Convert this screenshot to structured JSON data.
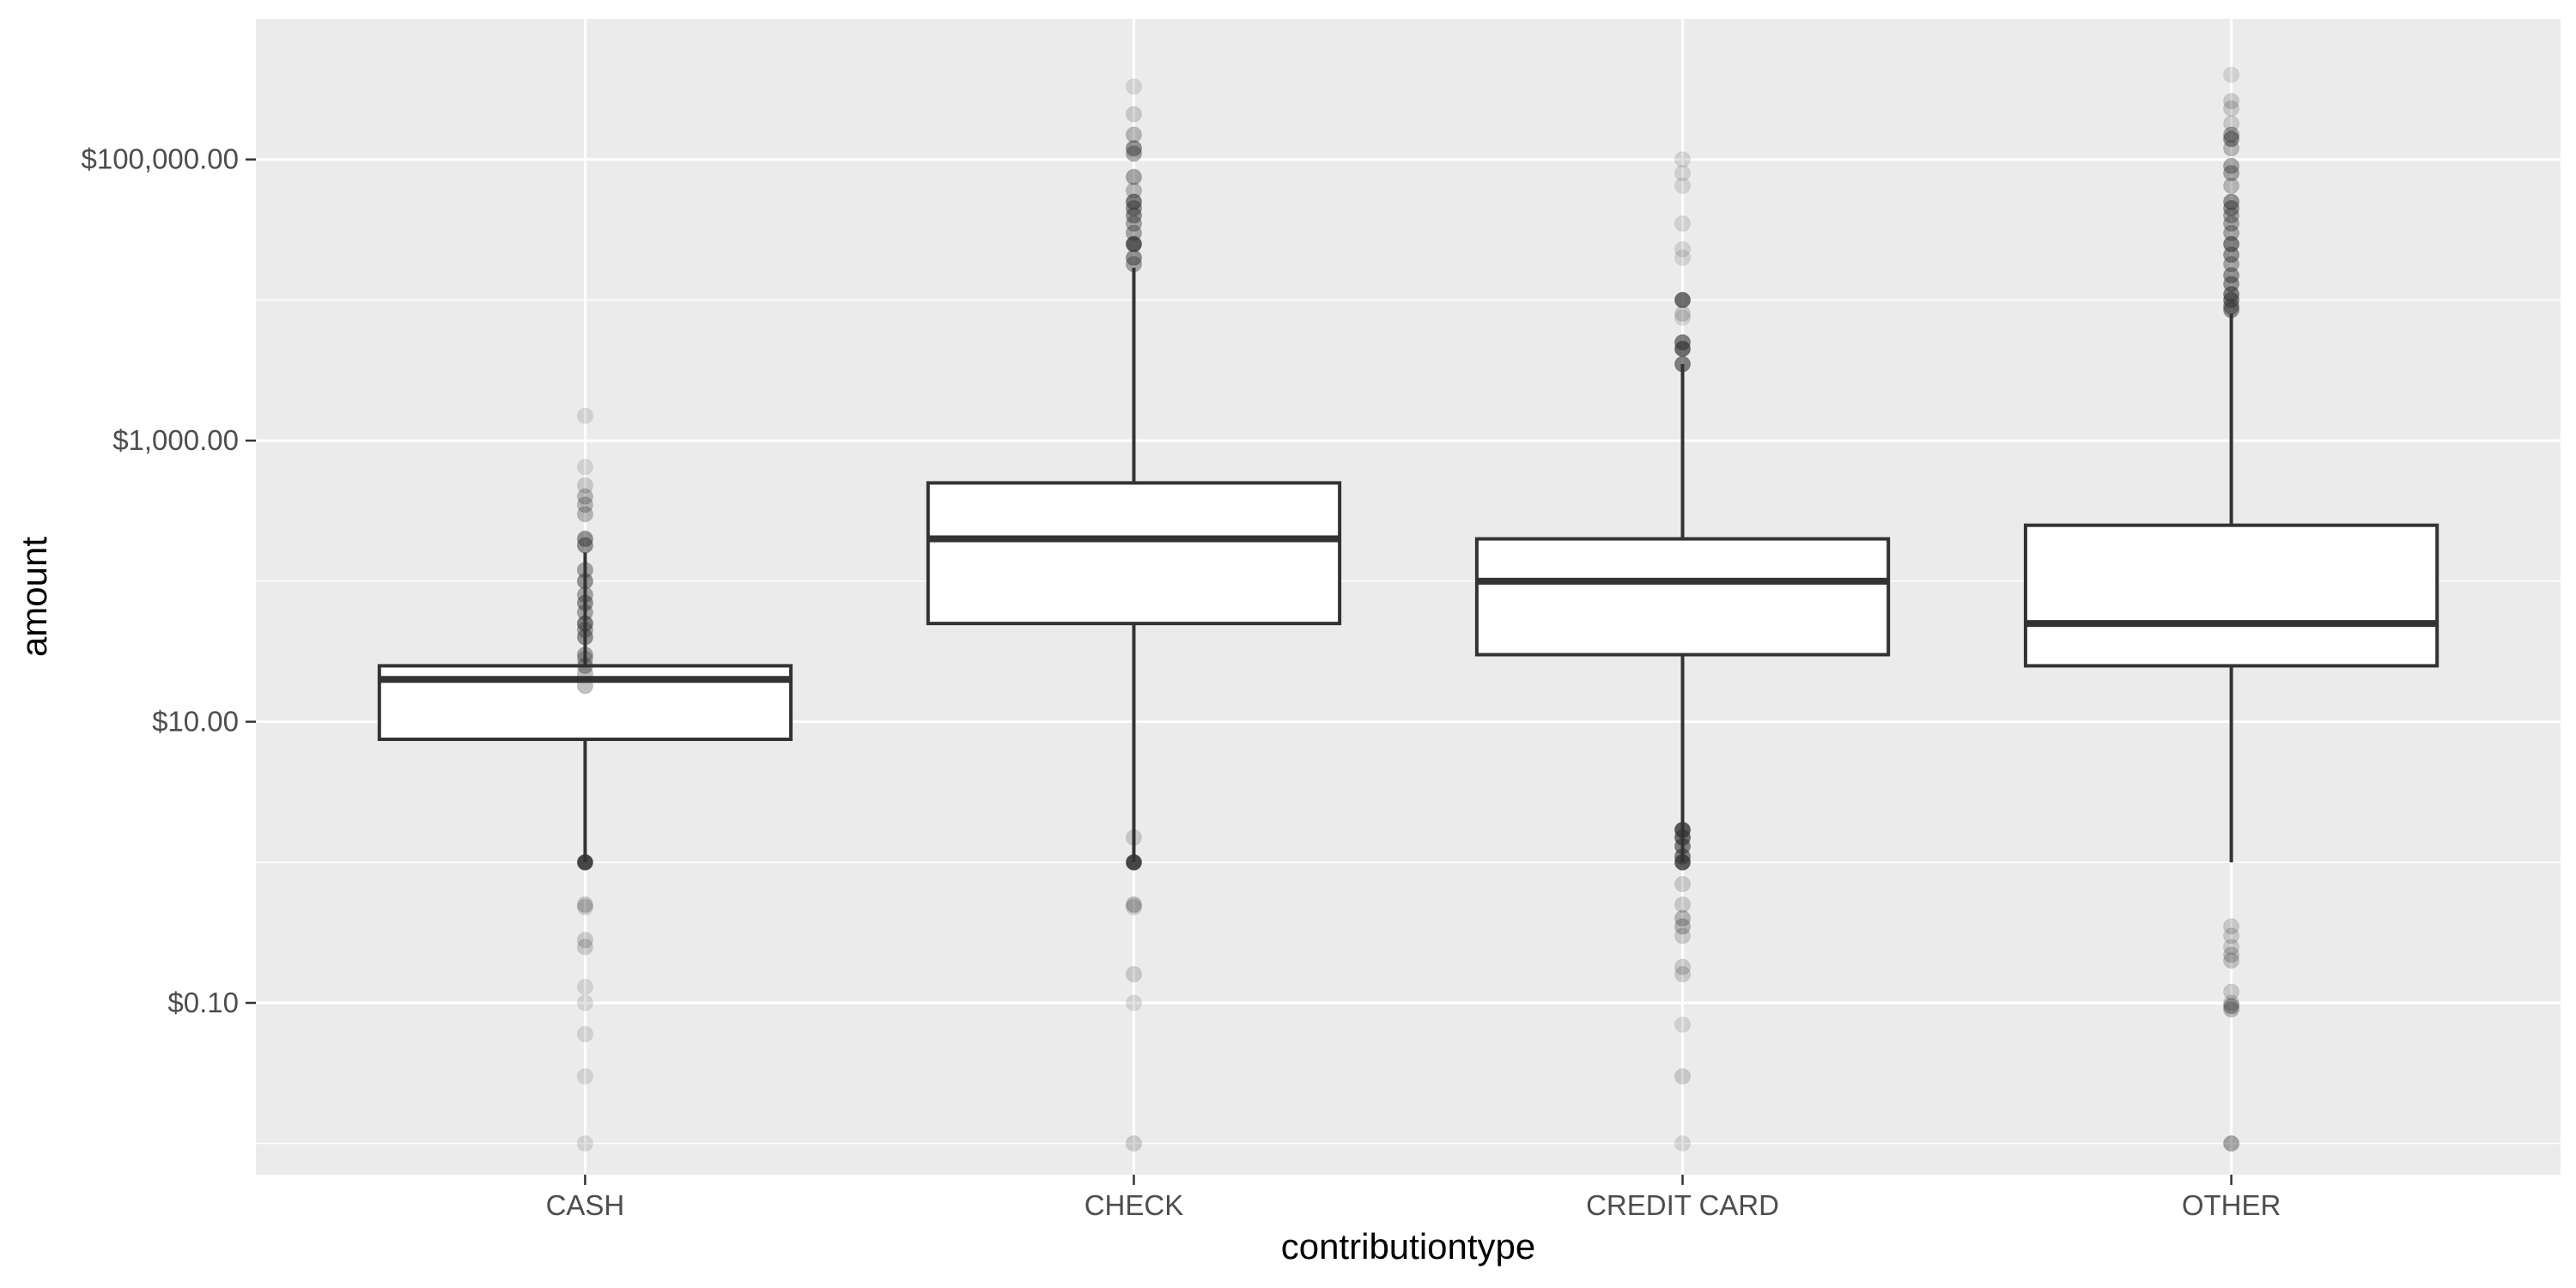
{
  "chart_data": {
    "type": "boxplot",
    "xlabel": "contributiontype",
    "ylabel": "amount",
    "y_scale": "log10",
    "ylim": [
      0.006,
      1000000
    ],
    "grid": true,
    "y_ticks": [
      {
        "value": 0.1,
        "label": "$0.10"
      },
      {
        "value": 10,
        "label": "$10.00"
      },
      {
        "value": 1000,
        "label": "$1,000.00"
      },
      {
        "value": 100000,
        "label": "$100,000.00"
      }
    ],
    "y_minor_ticks": [
      0.01,
      1,
      100,
      10000
    ],
    "categories": [
      "CASH",
      "CHECK",
      "CREDIT CARD",
      "OTHER"
    ],
    "boxes": [
      {
        "category": "CASH",
        "whisker_low": 1.0,
        "q1": 7.5,
        "median": 20,
        "q3": 25,
        "whisker_high": 160,
        "outliers": [
          {
            "value": 1500,
            "opacity": 0.15
          },
          {
            "value": 650,
            "opacity": 0.15
          },
          {
            "value": 480,
            "opacity": 0.2
          },
          {
            "value": 400,
            "opacity": 0.3
          },
          {
            "value": 350,
            "opacity": 0.3
          },
          {
            "value": 300,
            "opacity": 0.3
          },
          {
            "value": 200,
            "opacity": 0.5
          },
          {
            "value": 180,
            "opacity": 0.5
          },
          {
            "value": 120,
            "opacity": 0.4
          },
          {
            "value": 100,
            "opacity": 0.5
          },
          {
            "value": 80,
            "opacity": 0.4
          },
          {
            "value": 70,
            "opacity": 0.5
          },
          {
            "value": 60,
            "opacity": 0.4
          },
          {
            "value": 50,
            "opacity": 0.6
          },
          {
            "value": 45,
            "opacity": 0.4
          },
          {
            "value": 40,
            "opacity": 0.5
          },
          {
            "value": 30,
            "opacity": 0.4
          },
          {
            "value": 28,
            "opacity": 0.3
          },
          {
            "value": 25,
            "opacity": 0.4
          },
          {
            "value": 22,
            "opacity": 0.3
          },
          {
            "value": 18,
            "opacity": 0.3
          },
          {
            "value": 1.0,
            "opacity": 0.9
          },
          {
            "value": 0.5,
            "opacity": 0.25
          },
          {
            "value": 0.48,
            "opacity": 0.2
          },
          {
            "value": 0.28,
            "opacity": 0.2
          },
          {
            "value": 0.25,
            "opacity": 0.2
          },
          {
            "value": 0.13,
            "opacity": 0.15
          },
          {
            "value": 0.1,
            "opacity": 0.15
          },
          {
            "value": 0.06,
            "opacity": 0.15
          },
          {
            "value": 0.03,
            "opacity": 0.15
          },
          {
            "value": 0.01,
            "opacity": 0.15
          }
        ]
      },
      {
        "category": "CHECK",
        "whisker_low": 1.0,
        "q1": 50,
        "median": 200,
        "q3": 500,
        "whisker_high": 17000,
        "outliers": [
          {
            "value": 330000,
            "opacity": 0.15
          },
          {
            "value": 210000,
            "opacity": 0.2
          },
          {
            "value": 150000,
            "opacity": 0.3
          },
          {
            "value": 120000,
            "opacity": 0.5
          },
          {
            "value": 110000,
            "opacity": 0.4
          },
          {
            "value": 75000,
            "opacity": 0.4
          },
          {
            "value": 60000,
            "opacity": 0.3
          },
          {
            "value": 50000,
            "opacity": 0.6
          },
          {
            "value": 45000,
            "opacity": 0.5
          },
          {
            "value": 40000,
            "opacity": 0.5
          },
          {
            "value": 35000,
            "opacity": 0.4
          },
          {
            "value": 30000,
            "opacity": 0.4
          },
          {
            "value": 25000,
            "opacity": 0.8
          },
          {
            "value": 20000,
            "opacity": 0.5
          },
          {
            "value": 18000,
            "opacity": 0.4
          },
          {
            "value": 1.5,
            "opacity": 0.2
          },
          {
            "value": 1.0,
            "opacity": 0.9
          },
          {
            "value": 0.5,
            "opacity": 0.3
          },
          {
            "value": 0.48,
            "opacity": 0.2
          },
          {
            "value": 0.16,
            "opacity": 0.2
          },
          {
            "value": 0.1,
            "opacity": 0.15
          },
          {
            "value": 0.01,
            "opacity": 0.2
          }
        ]
      },
      {
        "category": "CREDIT CARD",
        "whisker_low": 1.0,
        "q1": 30,
        "median": 100,
        "q3": 200,
        "whisker_high": 3500,
        "outliers": [
          {
            "value": 100000,
            "opacity": 0.15
          },
          {
            "value": 80000,
            "opacity": 0.15
          },
          {
            "value": 65000,
            "opacity": 0.15
          },
          {
            "value": 35000,
            "opacity": 0.15
          },
          {
            "value": 23000,
            "opacity": 0.15
          },
          {
            "value": 20000,
            "opacity": 0.15
          },
          {
            "value": 10000,
            "opacity": 0.7
          },
          {
            "value": 8000,
            "opacity": 0.2
          },
          {
            "value": 7500,
            "opacity": 0.15
          },
          {
            "value": 5000,
            "opacity": 0.6
          },
          {
            "value": 4500,
            "opacity": 0.7
          },
          {
            "value": 3500,
            "opacity": 0.6
          },
          {
            "value": 1.7,
            "opacity": 0.8
          },
          {
            "value": 1.5,
            "opacity": 0.7
          },
          {
            "value": 1.3,
            "opacity": 0.6
          },
          {
            "value": 1.1,
            "opacity": 0.6
          },
          {
            "value": 1.0,
            "opacity": 0.8
          },
          {
            "value": 0.7,
            "opacity": 0.2
          },
          {
            "value": 0.5,
            "opacity": 0.2
          },
          {
            "value": 0.4,
            "opacity": 0.3
          },
          {
            "value": 0.35,
            "opacity": 0.3
          },
          {
            "value": 0.3,
            "opacity": 0.2
          },
          {
            "value": 0.18,
            "opacity": 0.2
          },
          {
            "value": 0.16,
            "opacity": 0.2
          },
          {
            "value": 0.07,
            "opacity": 0.15
          },
          {
            "value": 0.03,
            "opacity": 0.2
          },
          {
            "value": 0.01,
            "opacity": 0.15
          }
        ]
      },
      {
        "category": "OTHER",
        "whisker_low": 1.0,
        "q1": 25,
        "median": 50,
        "q3": 250,
        "whisker_high": 8000,
        "outliers": [
          {
            "value": 400000,
            "opacity": 0.15
          },
          {
            "value": 260000,
            "opacity": 0.2
          },
          {
            "value": 230000,
            "opacity": 0.2
          },
          {
            "value": 180000,
            "opacity": 0.2
          },
          {
            "value": 150000,
            "opacity": 0.4
          },
          {
            "value": 140000,
            "opacity": 0.5
          },
          {
            "value": 120000,
            "opacity": 0.3
          },
          {
            "value": 90000,
            "opacity": 0.4
          },
          {
            "value": 80000,
            "opacity": 0.4
          },
          {
            "value": 65000,
            "opacity": 0.3
          },
          {
            "value": 50000,
            "opacity": 0.5
          },
          {
            "value": 45000,
            "opacity": 0.5
          },
          {
            "value": 40000,
            "opacity": 0.4
          },
          {
            "value": 35000,
            "opacity": 0.4
          },
          {
            "value": 30000,
            "opacity": 0.4
          },
          {
            "value": 25000,
            "opacity": 0.6
          },
          {
            "value": 21000,
            "opacity": 0.5
          },
          {
            "value": 18000,
            "opacity": 0.4
          },
          {
            "value": 15000,
            "opacity": 0.5
          },
          {
            "value": 13000,
            "opacity": 0.5
          },
          {
            "value": 11000,
            "opacity": 0.6
          },
          {
            "value": 10000,
            "opacity": 0.6
          },
          {
            "value": 9000,
            "opacity": 0.5
          },
          {
            "value": 8500,
            "opacity": 0.5
          },
          {
            "value": 0.35,
            "opacity": 0.2
          },
          {
            "value": 0.3,
            "opacity": 0.2
          },
          {
            "value": 0.25,
            "opacity": 0.2
          },
          {
            "value": 0.22,
            "opacity": 0.25
          },
          {
            "value": 0.2,
            "opacity": 0.25
          },
          {
            "value": 0.12,
            "opacity": 0.2
          },
          {
            "value": 0.1,
            "opacity": 0.2
          },
          {
            "value": 0.095,
            "opacity": 0.4
          },
          {
            "value": 0.09,
            "opacity": 0.3
          },
          {
            "value": 0.01,
            "opacity": 0.4
          }
        ]
      }
    ]
  },
  "colors": {
    "panel_background": "#ebebeb",
    "grid_major": "#ffffff",
    "box_fill": "#ffffff",
    "box_line": "#333333",
    "outlier": "#333333",
    "tick_text": "#4d4d4d",
    "title_text": "#000000"
  }
}
